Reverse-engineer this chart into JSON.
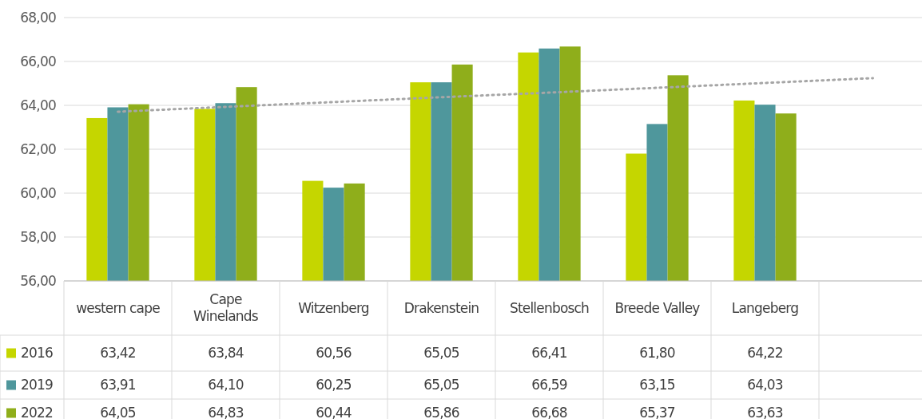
{
  "chart_data": {
    "type": "bar",
    "categories": [
      "western cape",
      "Cape Winelands",
      "Witzenberg",
      "Drakenstein",
      "Stellenbosch",
      "Breede Valley",
      "Langeberg",
      null
    ],
    "series": [
      {
        "name": "2016",
        "color": "#c5d600",
        "values": [
          63.42,
          63.84,
          60.56,
          65.05,
          66.41,
          61.8,
          64.22,
          null
        ],
        "value_labels": [
          "63,42",
          "63,84",
          "60,56",
          "65,05",
          "66,41",
          "61,80",
          "64,22",
          null
        ]
      },
      {
        "name": "2019",
        "color": "#4f979c",
        "values": [
          63.91,
          64.1,
          60.25,
          65.05,
          66.59,
          63.15,
          64.03,
          null
        ],
        "value_labels": [
          "63,91",
          "64,10",
          "60,25",
          "65,05",
          "66,59",
          "63,15",
          "64,03",
          null
        ]
      },
      {
        "name": "2022",
        "color": "#8fae1b",
        "values": [
          64.05,
          64.83,
          60.44,
          65.86,
          66.68,
          65.37,
          63.63,
          null
        ],
        "value_labels": [
          "64,05",
          "64,83",
          "60,44",
          "65,86",
          "66,68",
          "65,37",
          "63,63",
          null
        ]
      },
      {
        "type": "line",
        "color": "#a6a6a6",
        "line_style": "dotted",
        "values": [
          63.71,
          63.93,
          64.15,
          64.37,
          64.58,
          64.8,
          65.02,
          65.24
        ]
      }
    ],
    "ylim": [
      56,
      68
    ],
    "yticks": [
      {
        "value": 56,
        "label": "56,00"
      },
      {
        "value": 58,
        "label": "58,00"
      },
      {
        "value": 60,
        "label": "60,00"
      },
      {
        "value": 62,
        "label": "62,00"
      },
      {
        "value": 64,
        "label": "64,00"
      },
      {
        "value": 66,
        "label": "66,00"
      },
      {
        "value": 68,
        "label": "68,00"
      }
    ],
    "grid": "y",
    "legend": "bottom"
  }
}
